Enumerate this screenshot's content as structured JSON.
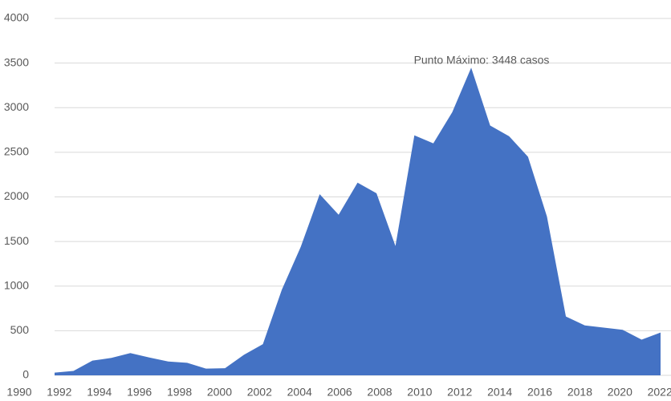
{
  "chart_data": {
    "type": "area",
    "x": [
      1990,
      1991,
      1992,
      1993,
      1994,
      1995,
      1996,
      1997,
      1998,
      1999,
      2000,
      2001,
      2002,
      2003,
      2004,
      2005,
      2006,
      2007,
      2008,
      2009,
      2010,
      2011,
      2012,
      2013,
      2014,
      2015,
      2016,
      2017,
      2018,
      2019,
      2020,
      2021,
      2022
    ],
    "values": [
      30,
      50,
      165,
      195,
      250,
      200,
      155,
      140,
      75,
      80,
      230,
      350,
      960,
      1440,
      2030,
      1800,
      2160,
      2040,
      1450,
      2690,
      2600,
      2950,
      3448,
      2800,
      2680,
      2450,
      1780,
      660,
      560,
      535,
      510,
      400,
      480
    ],
    "color": "#4472c4",
    "xlim": [
      1990,
      2022
    ],
    "xticks": [
      1990,
      1992,
      1994,
      1996,
      1998,
      2000,
      2002,
      2004,
      2006,
      2008,
      2010,
      2012,
      2014,
      2016,
      2018,
      2020,
      2022
    ],
    "ylim": [
      0,
      4000
    ],
    "yticks": [
      0,
      500,
      1000,
      1500,
      2000,
      2500,
      3000,
      3500,
      4000
    ],
    "grid": true,
    "annotation": "Punto Máximo: 3448 casos"
  }
}
